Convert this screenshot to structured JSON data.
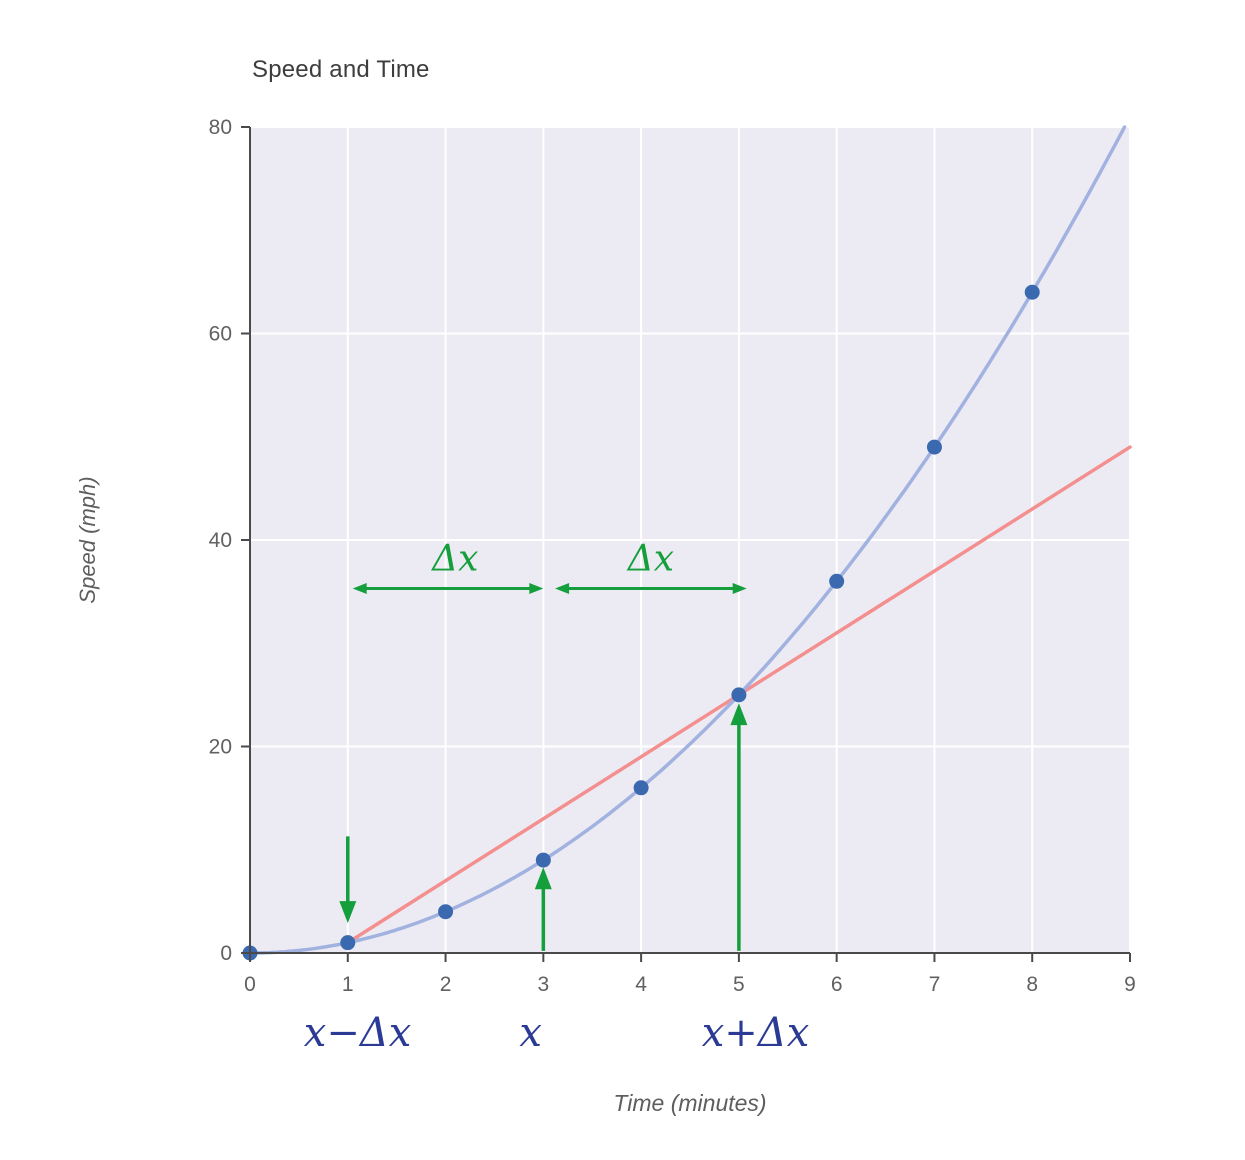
{
  "chart_data": {
    "type": "line",
    "title": "Speed and Time",
    "xlabel": "Time (minutes)",
    "ylabel": "Speed (mph)",
    "xlim": [
      0,
      9
    ],
    "ylim": [
      0,
      80
    ],
    "x_ticks": [
      "0",
      "1",
      "2",
      "3",
      "4",
      "5",
      "6",
      "7",
      "8",
      "9"
    ],
    "y_ticks": [
      "0",
      "20",
      "40",
      "60",
      "80"
    ],
    "grid": true,
    "legend": "none",
    "colors": {
      "plot_bg": "#ECEBF3",
      "grid": "#FFFFFF",
      "axis": "#4A4A4A",
      "tick_text": "#616161"
    },
    "series": [
      {
        "name": "speed curve y = x^2",
        "type": "quadratic_curve",
        "color": "#A2B2E0",
        "marker_color": "#3B69AF",
        "x_start": 0,
        "x_end": 8.944,
        "points": [
          [
            0,
            0
          ],
          [
            1,
            1
          ],
          [
            2,
            4
          ],
          [
            3,
            9
          ],
          [
            4,
            16
          ],
          [
            5,
            25
          ],
          [
            6,
            36
          ],
          [
            7,
            49
          ],
          [
            8,
            64
          ]
        ]
      },
      {
        "name": "secant line through (1,1) and (5,25)",
        "type": "straight_line",
        "color": "#F48F8F",
        "from": [
          1,
          1
        ],
        "to": [
          9,
          49
        ]
      }
    ],
    "annotations": {
      "color": "#149E3C",
      "label_color": "#2B3A94",
      "h_arrows": [
        {
          "x1": 1.05,
          "x2": 3.0,
          "y": 35.3,
          "label": "Δx",
          "label_cx": 2.1
        },
        {
          "x1": 3.12,
          "x2": 5.08,
          "y": 35.3,
          "label": "Δx",
          "label_cx": 4.1
        }
      ],
      "v_arrows": [
        {
          "x": 1,
          "tail_y": 11.3,
          "tip_y": 2.9,
          "direction": "down"
        },
        {
          "x": 3,
          "tail_y": 0.2,
          "tip_y": 8.3,
          "direction": "up"
        },
        {
          "x": 5,
          "tail_y": 0.2,
          "tip_y": 24.2,
          "direction": "up"
        }
      ],
      "below_axis_labels": [
        {
          "text": "x−Δx",
          "cx": 1.1
        },
        {
          "text": "x",
          "cx": 2.87
        },
        {
          "text": "x+Δx",
          "cx": 5.17
        }
      ]
    }
  }
}
